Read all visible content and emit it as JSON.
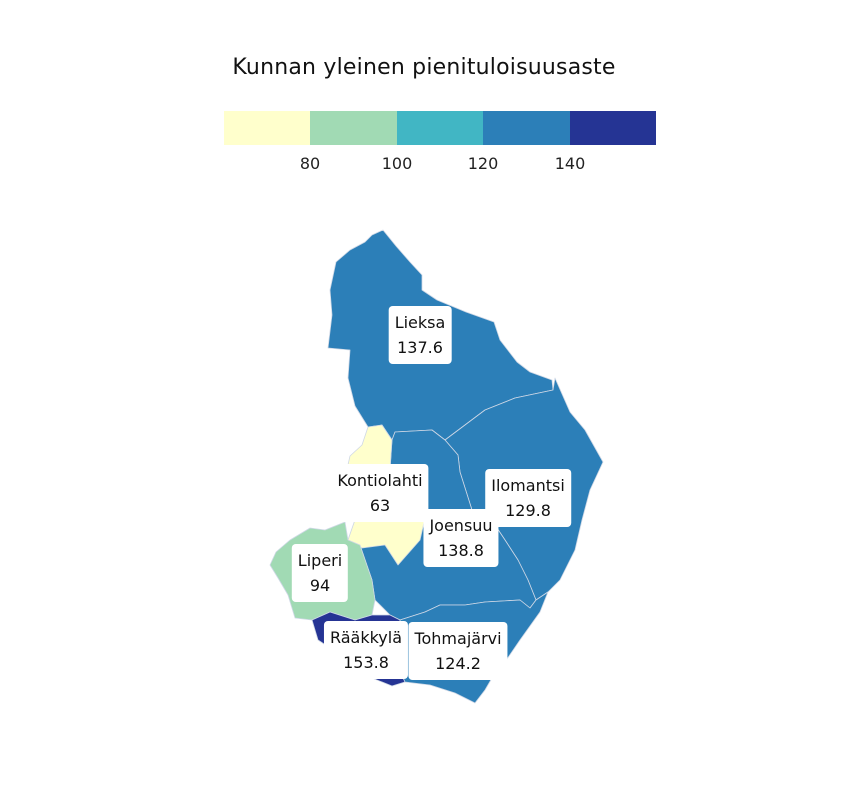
{
  "title": "Kunnan yleinen pienituloisuusaste",
  "legend": {
    "colors": [
      "#ffffcc",
      "#a1dab4",
      "#41b6c4",
      "#2c7fb8",
      "#253494"
    ],
    "ticks": [
      "80",
      "100",
      "120",
      "140"
    ]
  },
  "chart_data": {
    "type": "choropleth",
    "title": "Kunnan yleinen pienituloisuusaste",
    "bins": [
      {
        "max": 80,
        "color": "#ffffcc"
      },
      {
        "min": 80,
        "max": 100,
        "color": "#a1dab4"
      },
      {
        "min": 100,
        "max": 120,
        "color": "#41b6c4"
      },
      {
        "min": 120,
        "max": 140,
        "color": "#2c7fb8"
      },
      {
        "min": 140,
        "color": "#253494"
      }
    ],
    "regions": [
      {
        "name": "Lieksa",
        "value": 137.6
      },
      {
        "name": "Kontiolahti",
        "value": 63
      },
      {
        "name": "Ilomantsi",
        "value": 129.8
      },
      {
        "name": "Joensuu",
        "value": 138.8
      },
      {
        "name": "Liperi",
        "value": 94
      },
      {
        "name": "Rääkkylä",
        "value": 153.8
      },
      {
        "name": "Tohmajärvi",
        "value": 124.2
      }
    ]
  },
  "labels": {
    "lieksa": {
      "name": "Lieksa",
      "value": "137.6"
    },
    "kontiolahti": {
      "name": "Kontiolahti",
      "value": "63"
    },
    "ilomantsi": {
      "name": "Ilomantsi",
      "value": "129.8"
    },
    "joensuu": {
      "name": "Joensuu",
      "value": "138.8"
    },
    "liperi": {
      "name": "Liperi",
      "value": "94"
    },
    "raakkyla": {
      "name": "Rääkkylä",
      "value": "153.8"
    },
    "tohmajarvi": {
      "name": "Tohmajärvi",
      "value": "124.2"
    }
  }
}
